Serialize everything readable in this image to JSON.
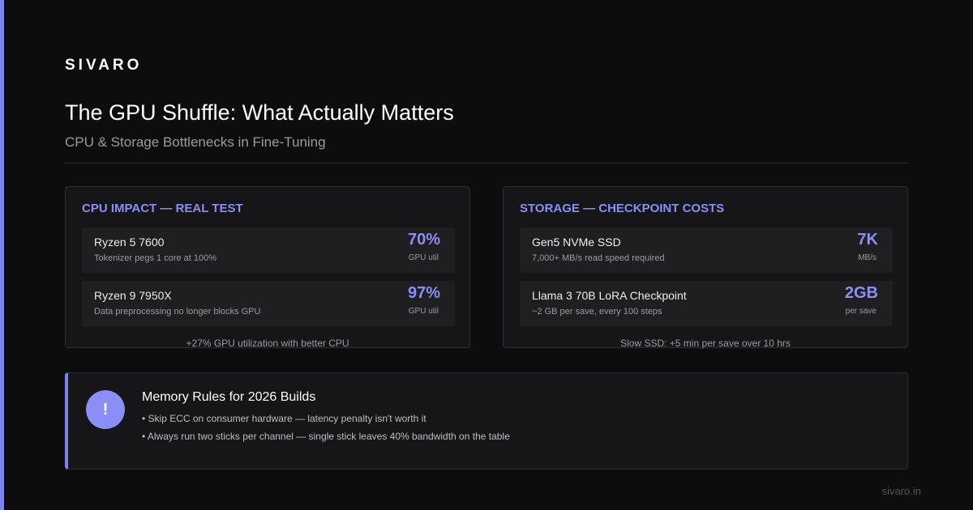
{
  "brand": "SIVARO",
  "title": "The GPU Shuffle: What Actually Matters",
  "subtitle": "CPU & Storage Bottlenecks in Fine-Tuning",
  "cards": [
    {
      "heading": "CPU IMPACT — REAL TEST",
      "items": [
        {
          "name": "Ryzen 5 7600",
          "desc": "Tokenizer pegs 1 core at 100%",
          "stat": "70%",
          "unit": "GPU util"
        },
        {
          "name": "Ryzen 9 7950X",
          "desc": "Data preprocessing no longer blocks GPU",
          "stat": "97%",
          "unit": "GPU util"
        }
      ],
      "footer": "+27% GPU utilization with better CPU"
    },
    {
      "heading": "STORAGE — CHECKPOINT COSTS",
      "items": [
        {
          "name": "Gen5 NVMe SSD",
          "desc": "7,000+ MB/s read speed required",
          "stat": "7K",
          "unit": "MB/s"
        },
        {
          "name": "Llama 3 70B LoRA Checkpoint",
          "desc": "~2 GB per save, every 100 steps",
          "stat": "2GB",
          "unit": "per save"
        }
      ],
      "footer": "Slow SSD: +5 min per save over 10 hrs"
    }
  ],
  "callout": {
    "icon": "!",
    "title": "Memory Rules for 2026 Builds",
    "bullets": [
      "• Skip ECC on consumer hardware — latency penalty isn't worth it",
      "• Always run two sticks per channel — single stick leaves 40% bandwidth on the table"
    ]
  },
  "footer": "sivaro.in"
}
